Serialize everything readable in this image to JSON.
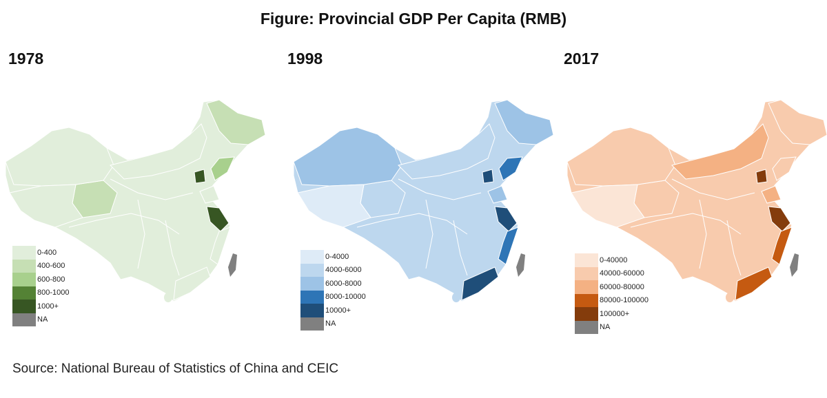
{
  "title": "Figure: Provincial GDP Per Capita (RMB)",
  "source": "Source: National Bureau of Statistics of China and CEIC",
  "maps": [
    {
      "year": "1978",
      "legend": [
        {
          "label": "0-400",
          "color": "#e1eedb"
        },
        {
          "label": "400-600",
          "color": "#c6dfb4"
        },
        {
          "label": "600-800",
          "color": "#a8d08d"
        },
        {
          "label": "800-1000",
          "color": "#548235"
        },
        {
          "label": "1000+",
          "color": "#375623"
        },
        {
          "label": "NA",
          "color": "#808080"
        }
      ]
    },
    {
      "year": "1998",
      "legend": [
        {
          "label": "0-4000",
          "color": "#deebf7"
        },
        {
          "label": "4000-6000",
          "color": "#bdd7ee"
        },
        {
          "label": "6000-8000",
          "color": "#9dc3e6"
        },
        {
          "label": "8000-10000",
          "color": "#2e75b6"
        },
        {
          "label": "10000+",
          "color": "#1f4e79"
        },
        {
          "label": "NA",
          "color": "#808080"
        }
      ]
    },
    {
      "year": "2017",
      "legend": [
        {
          "label": "0-40000",
          "color": "#fbe5d6"
        },
        {
          "label": "40000-60000",
          "color": "#f8cbad"
        },
        {
          "label": "60000-80000",
          "color": "#f4b183"
        },
        {
          "label": "80000-100000",
          "color": "#c55a11"
        },
        {
          "label": "100000+",
          "color": "#843c0c"
        },
        {
          "label": "NA",
          "color": "#808080"
        }
      ]
    }
  ]
}
